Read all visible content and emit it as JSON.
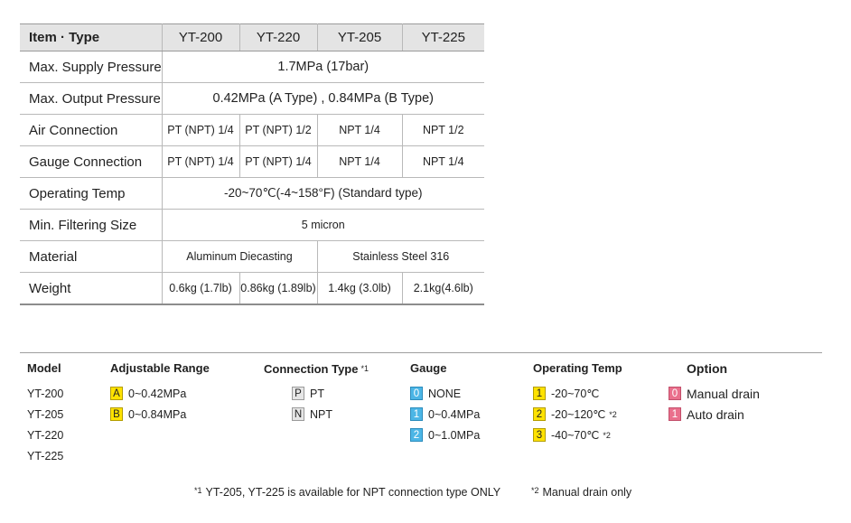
{
  "spec_table": {
    "header": [
      "Item · Type",
      "YT-200",
      "YT-220",
      "YT-205",
      "YT-225"
    ],
    "rows": {
      "supply": {
        "label": "Max. Supply Pressure",
        "value": "1.7MPa (17bar)"
      },
      "output": {
        "label": "Max. Output Pressure",
        "value": "0.42MPa (A Type) ,  0.84MPa (B Type)"
      },
      "air": {
        "label": "Air Connection",
        "values": [
          "PT (NPT) 1/4",
          "PT (NPT) 1/2",
          "NPT 1/4",
          "NPT 1/2"
        ]
      },
      "gauge": {
        "label": "Gauge Connection",
        "values": [
          "PT (NPT) 1/4",
          "PT (NPT) 1/4",
          "NPT 1/4",
          "NPT 1/4"
        ]
      },
      "temp": {
        "label": "Operating Temp",
        "value": "-20~70℃(-4~158°F)  (Standard type)"
      },
      "filter": {
        "label": "Min. Filtering Size",
        "value": "5 micron"
      },
      "material": {
        "label": "Material",
        "values": [
          "Aluminum Diecasting",
          "Stainless Steel 316"
        ]
      },
      "weight": {
        "label": "Weight",
        "values": [
          "0.6kg (1.7lb)",
          "0.86kg (1.89lb)",
          "1.4kg (3.0lb)",
          "2.1kg(4.6lb)"
        ]
      }
    }
  },
  "ordering": {
    "model": {
      "header": "Model",
      "items": [
        "YT-200",
        "YT-205",
        "YT-220",
        "YT-225"
      ]
    },
    "range": {
      "header": "Adjustable Range",
      "items": [
        {
          "code": "A",
          "text": "0~0.42MPa"
        },
        {
          "code": "B",
          "text": "0~0.84MPa"
        }
      ]
    },
    "connection": {
      "header": "Connection Type",
      "footnote_mark": "*1",
      "items": [
        {
          "code": "P",
          "text": "PT"
        },
        {
          "code": "N",
          "text": "NPT"
        }
      ]
    },
    "gauge": {
      "header": "Gauge",
      "items": [
        {
          "code": "0",
          "text": "NONE"
        },
        {
          "code": "1",
          "text": "0~0.4MPa"
        },
        {
          "code": "2",
          "text": "0~1.0MPa"
        }
      ]
    },
    "temp": {
      "header": "Operating Temp",
      "items": [
        {
          "code": "1",
          "text": "-20~70℃",
          "mark": ""
        },
        {
          "code": "2",
          "text": "-20~120℃",
          "mark": "*2"
        },
        {
          "code": "3",
          "text": "-40~70℃",
          "mark": "*2"
        }
      ]
    },
    "option": {
      "header": "Option",
      "items": [
        {
          "code": "0",
          "text": "Manual drain"
        },
        {
          "code": "1",
          "text": "Auto drain"
        }
      ]
    }
  },
  "notes": {
    "note1": {
      "mark": "*1",
      "text": "YT-205, YT-225 is available for NPT connection type ONLY"
    },
    "note2": {
      "mark": "*2",
      "text": "Manual drain only"
    }
  },
  "colors": {
    "yellow": "#ffe200",
    "grey": "#e6e6e6",
    "blue": "#4cb6e6",
    "pink": "#ea6f8c",
    "header_bg": "#e4e4e4"
  }
}
